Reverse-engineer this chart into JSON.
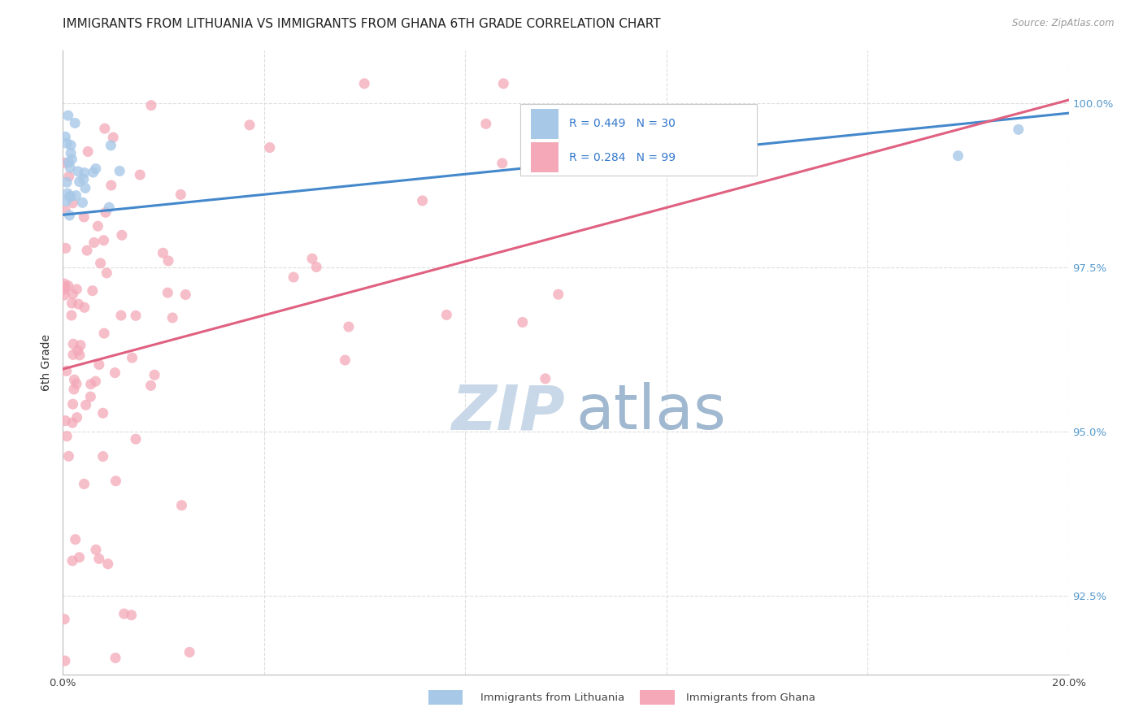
{
  "title": "IMMIGRANTS FROM LITHUANIA VS IMMIGRANTS FROM GHANA 6TH GRADE CORRELATION CHART",
  "source": "Source: ZipAtlas.com",
  "ylabel": "6th Grade",
  "x_min": 0.0,
  "x_max": 20.0,
  "y_min": 91.3,
  "y_max": 100.8,
  "yticks": [
    92.5,
    95.0,
    97.5,
    100.0
  ],
  "ytick_labels": [
    "92.5%",
    "95.0%",
    "97.5%",
    "100.0%"
  ],
  "xtick_positions": [
    0.0,
    4.0,
    8.0,
    12.0,
    16.0,
    20.0
  ],
  "xtick_labels": [
    "0.0%",
    "",
    "",
    "",
    "",
    "20.0%"
  ],
  "legend_label1": "Immigrants from Lithuania",
  "legend_label2": "Immigrants from Ghana",
  "blue_color": "#A8C8E8",
  "pink_color": "#F4A8B8",
  "blue_line_color": "#4488CC",
  "pink_line_color": "#E06080",
  "blue_r": 0.449,
  "blue_n": 30,
  "pink_r": 0.284,
  "pink_n": 99,
  "blue_line_x0": 0.0,
  "blue_line_y0": 98.3,
  "blue_line_x1": 20.0,
  "blue_line_y1": 99.85,
  "pink_line_x0": 0.0,
  "pink_line_y0": 95.95,
  "pink_line_x1": 20.0,
  "pink_line_y1": 100.05,
  "grid_color": "#DDDDDD",
  "background_color": "#FFFFFF",
  "title_fontsize": 11,
  "axis_label_fontsize": 10,
  "tick_fontsize": 9.5,
  "marker_size": 9,
  "watermark_zip_color": "#C8D8E8",
  "watermark_atlas_color": "#A0B8D0",
  "watermark_fontsize": 55
}
